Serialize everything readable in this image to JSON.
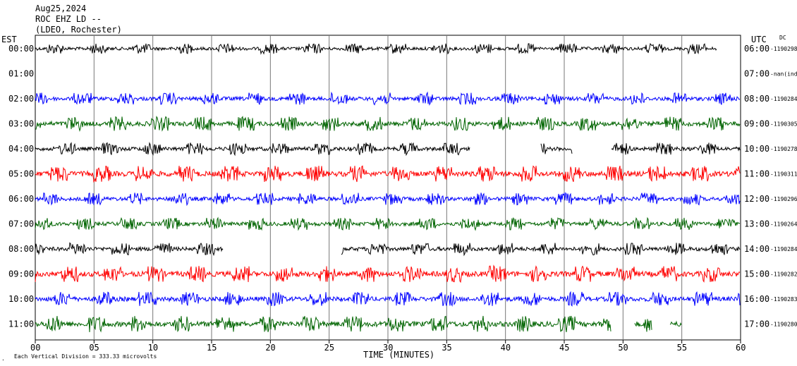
{
  "header": {
    "date": "Aug25,2024",
    "station": "ROC EHZ LD --",
    "network": "(LDEO, Rochester)"
  },
  "left_timezone": "EST",
  "right_timezone": "UTC",
  "dc_label": "DC",
  "chart_data": {
    "type": "line",
    "subtype": "helicorder",
    "title": "",
    "xlabel": "TIME (MINUTES)",
    "ylabel": "",
    "xlim": [
      0,
      60
    ],
    "x_ticks": [
      "00",
      "05",
      "10",
      "15",
      "20",
      "25",
      "30",
      "35",
      "40",
      "45",
      "50",
      "55",
      "60"
    ],
    "vertical_grid_every_minutes": 5,
    "scale_note": "Each Vertical Division =  333.33 microvolts",
    "rows": [
      {
        "est": "00:00",
        "utc": "06:00",
        "offset": "-1190298",
        "color": "#000000",
        "start": 0,
        "end": 58,
        "amp": 5
      },
      {
        "est": "01:00",
        "utc": "07:00",
        "offset": "-nan(ind",
        "color": "#ff0000",
        "start": 0,
        "end": 0,
        "amp": 0
      },
      {
        "est": "02:00",
        "utc": "08:00",
        "offset": "-1190284",
        "color": "#0000ff",
        "start": 0,
        "end": 60,
        "amp": 6
      },
      {
        "est": "03:00",
        "utc": "09:00",
        "offset": "-1190305",
        "color": "#006400",
        "start": 0,
        "end": 60,
        "amp": 7
      },
      {
        "est": "04:00",
        "utc": "10:00",
        "offset": "-1190278",
        "color": "#000000",
        "start": 0,
        "end": 60,
        "amp": 6
      },
      {
        "est": "05:00",
        "utc": "11:00",
        "offset": "-1190311",
        "color": "#ff0000",
        "start": 0,
        "end": 60,
        "amp": 8
      },
      {
        "est": "06:00",
        "utc": "12:00",
        "offset": "-1190296",
        "color": "#0000ff",
        "start": 0,
        "end": 60,
        "amp": 6
      },
      {
        "est": "07:00",
        "utc": "13:00",
        "offset": "-1190264",
        "color": "#006400",
        "start": 0,
        "end": 60,
        "amp": 6
      },
      {
        "est": "08:00",
        "utc": "14:00",
        "offset": "-1190284",
        "color": "#000000",
        "start": 0,
        "end": 60,
        "amp": 6
      },
      {
        "est": "09:00",
        "utc": "15:00",
        "offset": "-1190282",
        "color": "#ff0000",
        "start": 0,
        "end": 60,
        "amp": 8
      },
      {
        "est": "10:00",
        "utc": "16:00",
        "offset": "-1190283",
        "color": "#0000ff",
        "start": 0,
        "end": 60,
        "amp": 7
      },
      {
        "est": "11:00",
        "utc": "17:00",
        "offset": "-1190280",
        "color": "#006400",
        "start": 0,
        "end": 55,
        "amp": 8
      }
    ],
    "gaps": [
      {
        "row": 4,
        "from": 37,
        "to": 43
      },
      {
        "row": 4,
        "from": 45.7,
        "to": 49
      },
      {
        "row": 8,
        "from": 16,
        "to": 26
      },
      {
        "row": 11,
        "from": 49,
        "to": 51
      },
      {
        "row": 11,
        "from": 52.5,
        "to": 54
      }
    ]
  }
}
